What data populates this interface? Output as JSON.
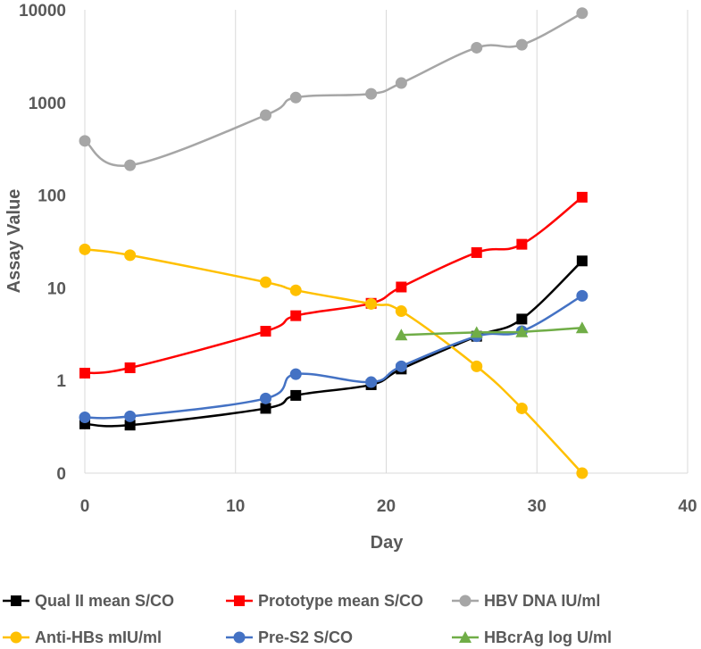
{
  "chart_data": {
    "type": "line",
    "title": "",
    "xlabel": "Day",
    "ylabel": "Assay Value",
    "xlim": [
      0,
      40
    ],
    "x_ticks": [
      0,
      10,
      20,
      30,
      40
    ],
    "yscale": "log",
    "ylim": [
      0.1,
      10000
    ],
    "y_ticks": [
      0.1,
      1,
      10,
      100,
      1000,
      10000
    ],
    "y_tick_labels": [
      "0",
      "1",
      "10",
      "100",
      "1000",
      "10000"
    ],
    "grid": "vertical",
    "legend_position": "bottom",
    "series": [
      {
        "name": "Qual II mean S/CO",
        "color": "#000000",
        "marker": "square",
        "x": [
          0,
          3,
          12,
          14,
          19,
          21,
          26,
          29,
          33
        ],
        "values": [
          0.34,
          0.33,
          0.5,
          0.69,
          0.9,
          1.33,
          3.0,
          4.6,
          19.5
        ]
      },
      {
        "name": "Prototype mean S/CO",
        "color": "#ff0000",
        "marker": "square",
        "x": [
          0,
          3,
          12,
          14,
          19,
          21,
          26,
          29,
          33
        ],
        "values": [
          1.2,
          1.37,
          3.4,
          5.0,
          6.8,
          10.2,
          24.0,
          29.5,
          95.0
        ]
      },
      {
        "name": "HBV DNA IU/ml",
        "color": "#a6a6a6",
        "marker": "circle",
        "x": [
          0,
          3,
          12,
          14,
          19,
          21,
          26,
          29,
          33
        ],
        "values": [
          385,
          210,
          730,
          1130,
          1240,
          1620,
          3900,
          4200,
          9200
        ]
      },
      {
        "name": "Anti-HBs mIU/ml",
        "color": "#ffc000",
        "marker": "circle",
        "x": [
          0,
          3,
          12,
          14,
          19,
          21,
          26,
          29,
          33
        ],
        "values": [
          26,
          22.5,
          11.5,
          9.4,
          6.7,
          5.6,
          1.42,
          0.5,
          0.1
        ]
      },
      {
        "name": "Pre-S2 S/CO",
        "color": "#4472c4",
        "marker": "circle",
        "x": [
          0,
          3,
          12,
          14,
          19,
          21,
          26,
          29,
          33
        ],
        "values": [
          0.4,
          0.41,
          0.64,
          1.17,
          0.96,
          1.42,
          3.0,
          3.4,
          8.2
        ]
      },
      {
        "name": "HBcrAg log U/ml",
        "color": "#70ad47",
        "marker": "triangle",
        "x": [
          21,
          26,
          29,
          33
        ],
        "values": [
          3.1,
          3.3,
          3.35,
          3.7
        ]
      }
    ]
  }
}
